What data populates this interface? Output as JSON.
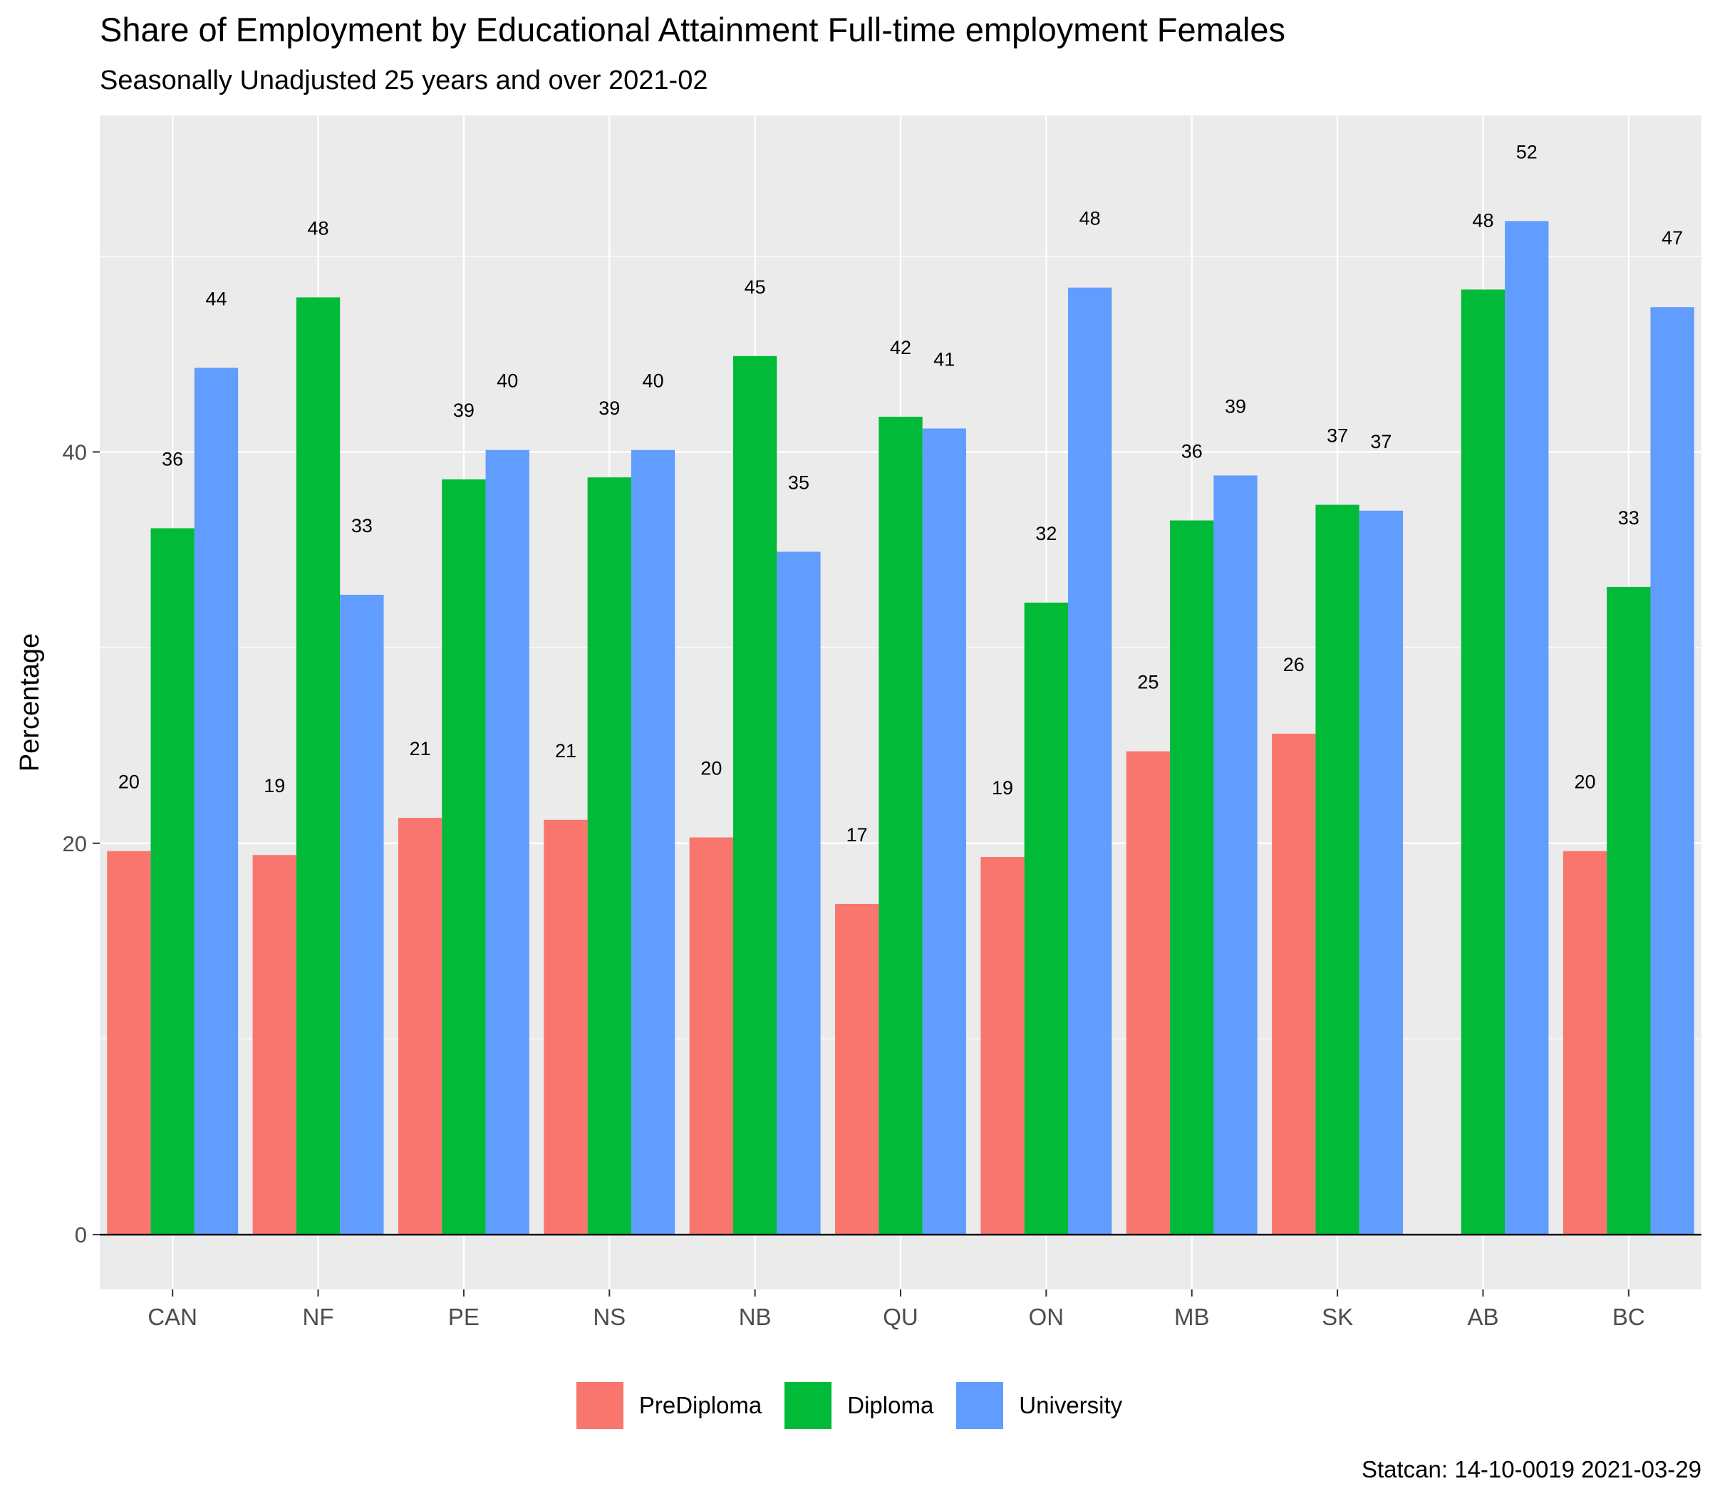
{
  "chart_data": {
    "type": "bar",
    "title": "Share of Employment by Educational Attainment Full-time employment Females",
    "subtitle": "Seasonally Unadjusted 25 years and over 2021-02",
    "ylabel": "Percentage",
    "xlabel": "",
    "caption": "Statcan: 14-10-0019 2021-03-29",
    "categories": [
      "CAN",
      "NF",
      "PE",
      "NS",
      "NB",
      "QU",
      "ON",
      "MB",
      "SK",
      "AB",
      "BC"
    ],
    "series": [
      {
        "name": "PreDiploma",
        "color": "#F8766D",
        "values": [
          19.6,
          19.4,
          21.3,
          21.2,
          20.3,
          16.9,
          19.3,
          24.7,
          25.6,
          null,
          19.6
        ]
      },
      {
        "name": "Diploma",
        "color": "#00BA38",
        "values": [
          36.1,
          47.9,
          38.6,
          38.7,
          44.9,
          41.8,
          32.3,
          36.5,
          37.3,
          48.3,
          33.1
        ]
      },
      {
        "name": "University",
        "color": "#619CFF",
        "values": [
          44.3,
          32.7,
          40.1,
          40.1,
          34.9,
          41.2,
          48.4,
          38.8,
          37.0,
          51.8,
          47.4
        ]
      }
    ],
    "data_labels": [
      [
        "20",
        "19",
        "21",
        "21",
        "20",
        "17",
        "19",
        "25",
        "26",
        "",
        "20"
      ],
      [
        "36",
        "48",
        "39",
        "39",
        "45",
        "42",
        "32",
        "36",
        "37",
        "48",
        "33"
      ],
      [
        "44",
        "33",
        "40",
        "40",
        "35",
        "41",
        "48",
        "39",
        "37",
        "52",
        "47"
      ]
    ],
    "yticks": [
      "0",
      "20",
      "40"
    ],
    "ylim": [
      -2.8,
      57.2
    ],
    "grid": true,
    "legend_position": "bottom"
  }
}
